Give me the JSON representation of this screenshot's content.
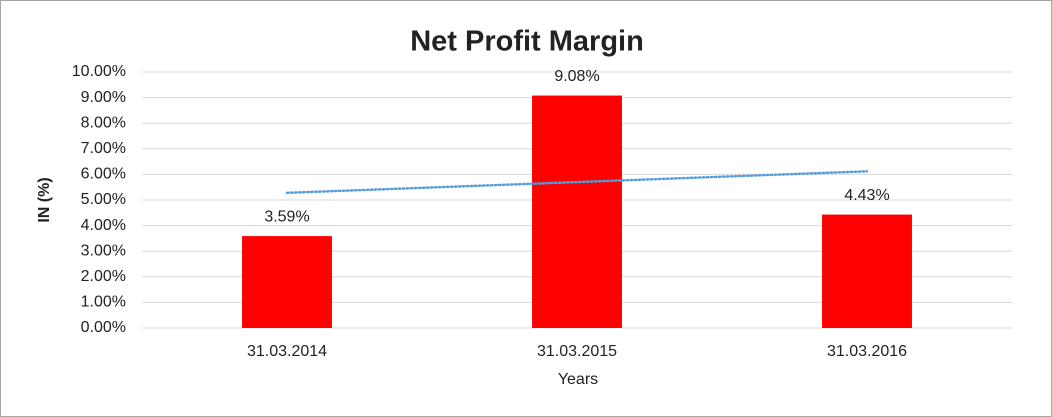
{
  "chart_data": {
    "type": "bar",
    "title": "Net Profit Margin",
    "x_label": "Years",
    "y_label": "IN (%)",
    "categories": [
      "31.03.2014",
      "31.03.2015",
      "31.03.2016"
    ],
    "values": [
      3.59,
      9.08,
      4.43
    ],
    "value_labels": [
      "3.59%",
      "9.08%",
      "4.43%"
    ],
    "color": "#ff0000",
    "ylim": [
      0,
      10
    ],
    "yticks": [
      {
        "value": 0,
        "label": "0.00%"
      },
      {
        "value": 1,
        "label": "1.00%"
      },
      {
        "value": 2,
        "label": "2.00%"
      },
      {
        "value": 3,
        "label": "3.00%"
      },
      {
        "value": 4,
        "label": "4.00%"
      },
      {
        "value": 5,
        "label": "5.00%"
      },
      {
        "value": 6,
        "label": "6.00%"
      },
      {
        "value": 7,
        "label": "7.00%"
      },
      {
        "value": 8,
        "label": "8.00%"
      },
      {
        "value": 9,
        "label": "9.00%"
      },
      {
        "value": 10,
        "label": "10.00%"
      }
    ],
    "grid": true,
    "trendline": {
      "type": "linear",
      "color": "#5b9bd5"
    }
  }
}
